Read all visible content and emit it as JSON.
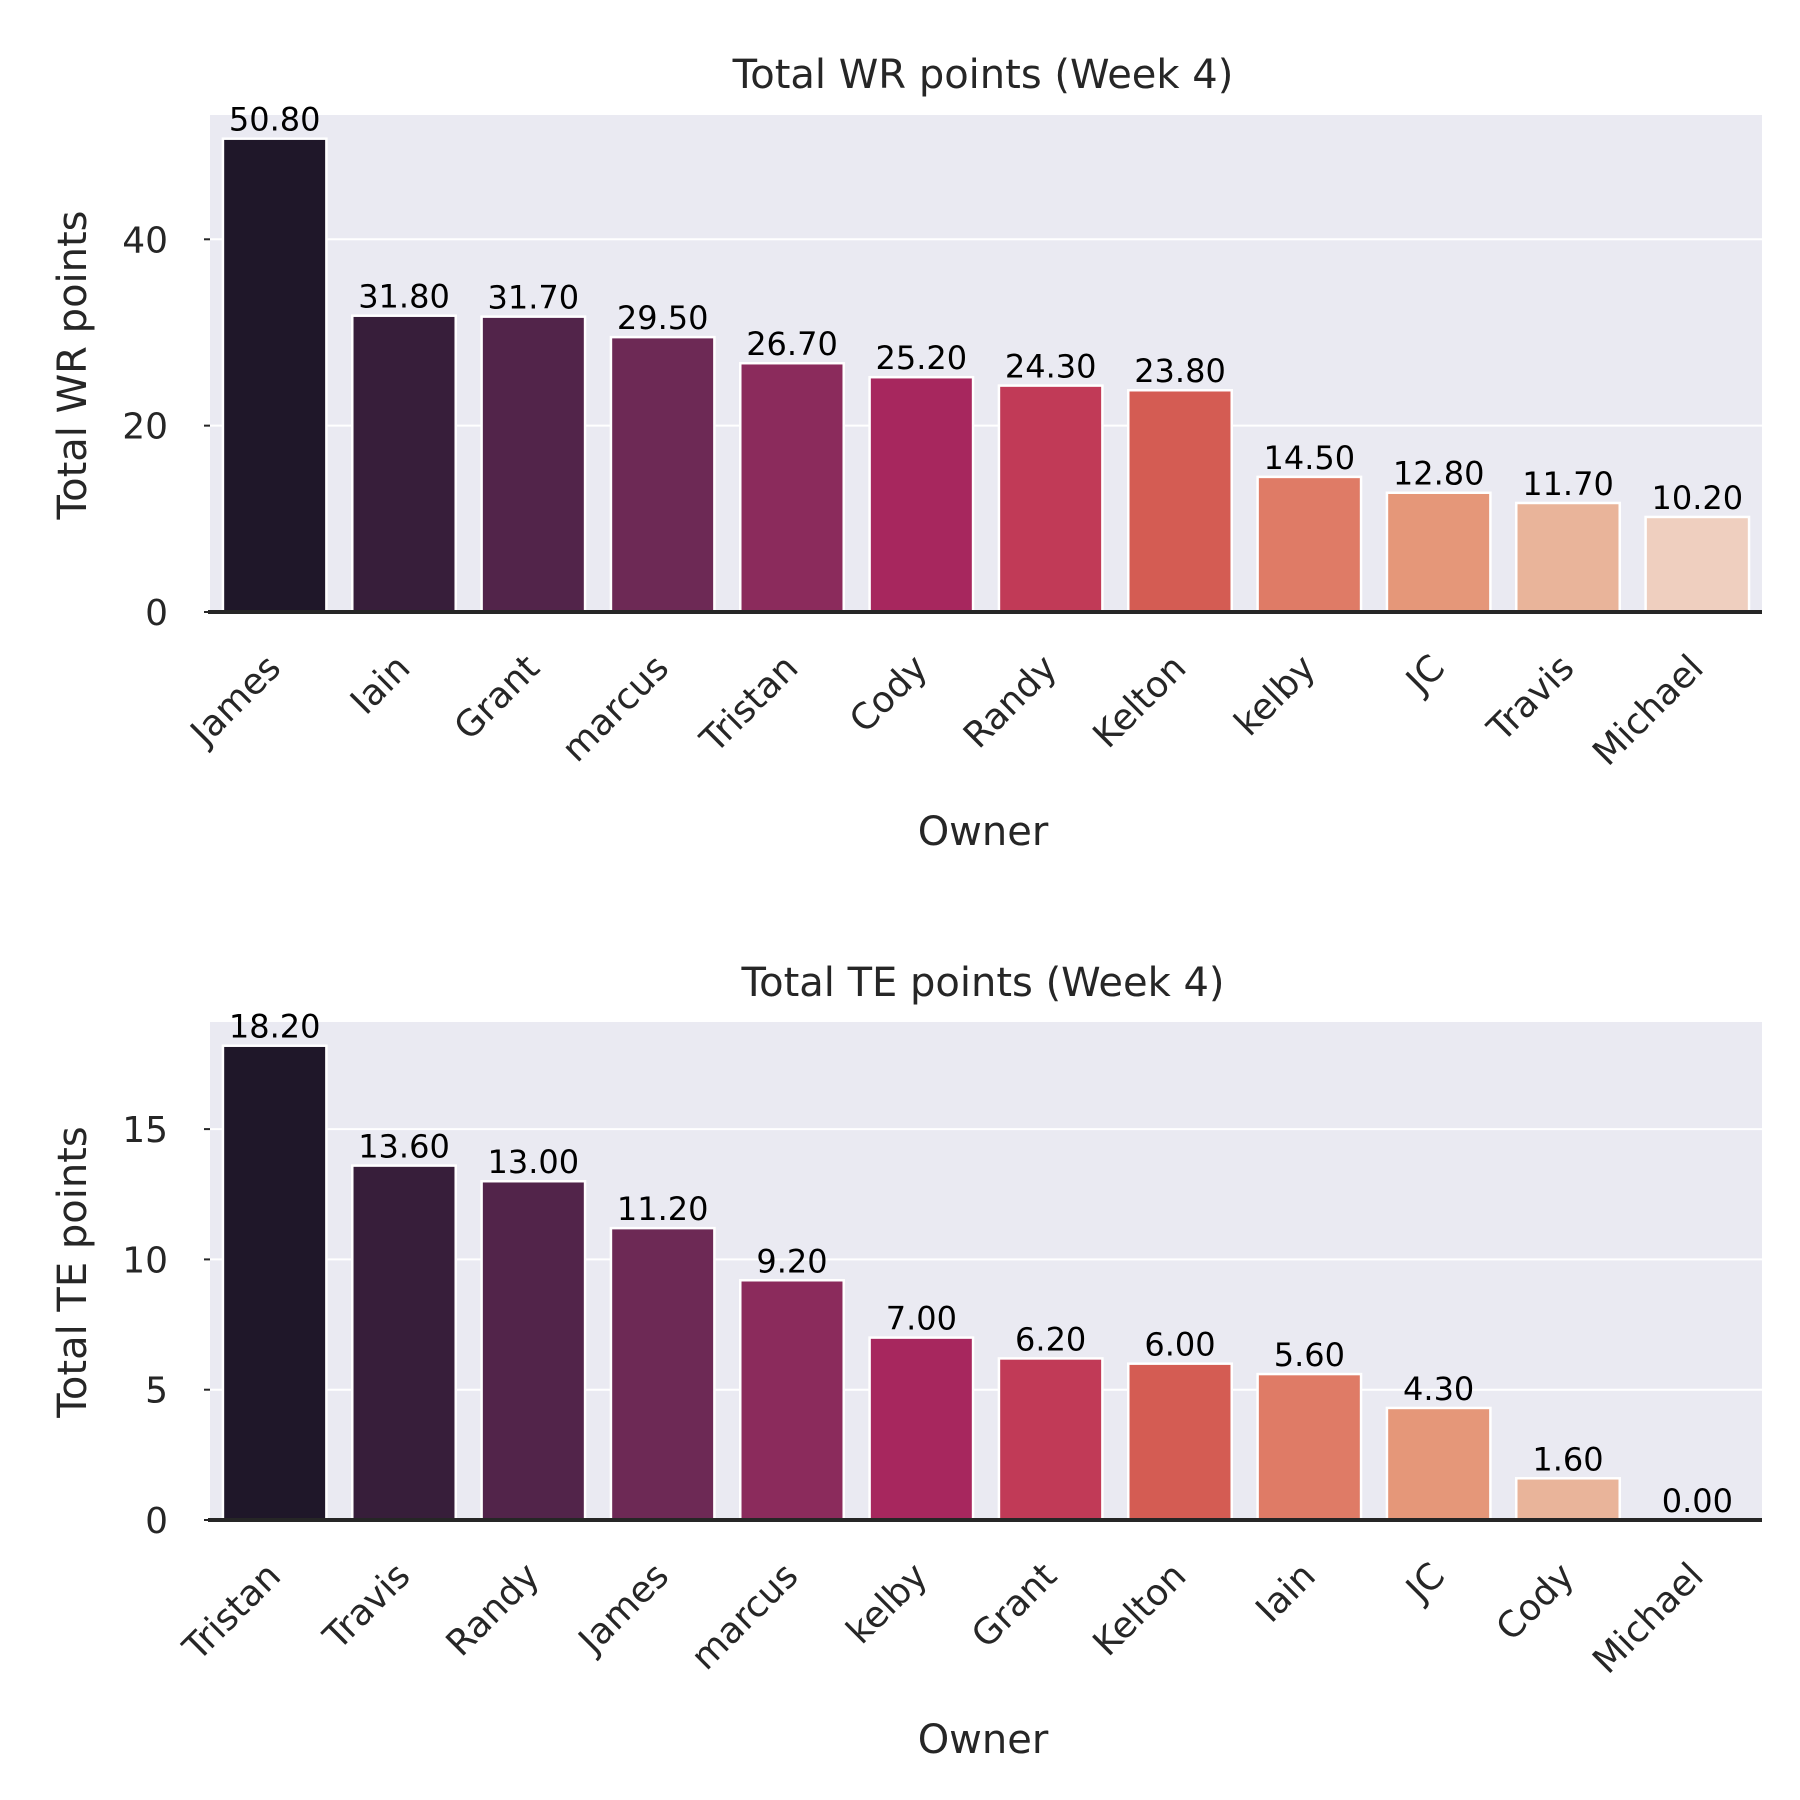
{
  "colors": {
    "background": "#ffffff",
    "plot_background": "#eaeaf2",
    "grid": "#ffffff",
    "axis_line": "#262626",
    "bar_edge": "#ffffff",
    "palette": [
      "#1f1729",
      "#371e3a",
      "#52244a",
      "#6d2955",
      "#8b2b5c",
      "#a7275e",
      "#c13a57",
      "#d45c53",
      "#df7b66",
      "#e59779",
      "#e9b49a",
      "#efcfbf"
    ]
  },
  "chart_data": [
    {
      "type": "bar",
      "title": "Total WR points (Week 4)",
      "xlabel": "Owner",
      "ylabel": "Total WR points",
      "categories": [
        "James",
        "Iain",
        "Grant",
        "marcus",
        "Tristan",
        "Cody",
        "Randy",
        "Kelton",
        "kelby",
        "JC",
        "Travis",
        "Michael"
      ],
      "values": [
        50.8,
        31.8,
        31.7,
        29.5,
        26.7,
        25.2,
        24.3,
        23.8,
        14.5,
        12.8,
        11.7,
        10.2
      ],
      "value_labels": [
        "50.80",
        "31.80",
        "31.70",
        "29.50",
        "26.70",
        "25.20",
        "24.30",
        "23.80",
        "14.50",
        "12.80",
        "11.70",
        "10.20"
      ],
      "yticks": [
        0,
        20,
        40
      ],
      "ylim": [
        0,
        53.34
      ],
      "grid": true,
      "legend": false
    },
    {
      "type": "bar",
      "title": "Total TE points (Week 4)",
      "xlabel": "Owner",
      "ylabel": "Total TE points",
      "categories": [
        "Tristan",
        "Travis",
        "Randy",
        "James",
        "marcus",
        "kelby",
        "Grant",
        "Kelton",
        "Iain",
        "JC",
        "Cody",
        "Michael"
      ],
      "values": [
        18.2,
        13.6,
        13.0,
        11.2,
        9.2,
        7.0,
        6.2,
        6.0,
        5.6,
        4.3,
        1.6,
        0.0
      ],
      "value_labels": [
        "18.20",
        "13.60",
        "13.00",
        "11.20",
        "9.20",
        "7.00",
        "6.20",
        "6.00",
        "5.60",
        "4.30",
        "1.60",
        "0.00"
      ],
      "yticks": [
        0,
        5,
        10,
        15
      ],
      "ylim": [
        0,
        19.11
      ],
      "grid": true,
      "legend": false
    }
  ]
}
